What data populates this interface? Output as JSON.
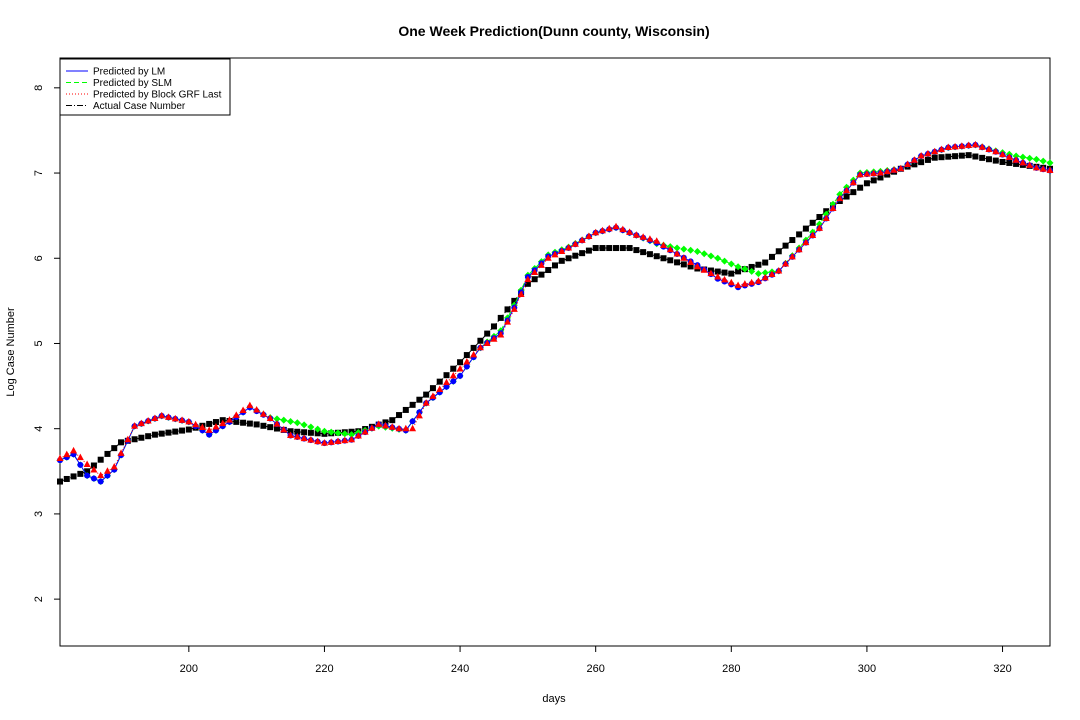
{
  "chart_data": {
    "type": "line",
    "title": "One Week Prediction(Dunn county, Wisconsin)",
    "xlabel": "days",
    "ylabel": "Log Case Number",
    "xlim": [
      181,
      327
    ],
    "ylim": [
      1.45,
      8.35
    ],
    "x_ticks": [
      200,
      220,
      240,
      260,
      280,
      300,
      320
    ],
    "y_ticks": [
      2,
      3,
      4,
      5,
      6,
      7,
      8
    ],
    "grid": false,
    "legend_position": "top-left",
    "colors": {
      "lm": "#0000ff",
      "slm": "#00ff00",
      "grf": "#ff0000",
      "actual": "#000000"
    },
    "legend": [
      {
        "key": "lm",
        "label": "Predicted by LM"
      },
      {
        "key": "slm",
        "label": "Predicted by SLM"
      },
      {
        "key": "grf",
        "label": "Predicted by Block GRF Last"
      },
      {
        "key": "actual",
        "label": "Actual Case Number"
      }
    ],
    "actual_knots": [
      [
        181,
        3.38
      ],
      [
        185,
        3.5
      ],
      [
        190,
        3.84
      ],
      [
        195,
        3.93
      ],
      [
        200,
        3.99
      ],
      [
        205,
        4.1
      ],
      [
        210,
        4.05
      ],
      [
        215,
        3.97
      ],
      [
        220,
        3.94
      ],
      [
        225,
        3.97
      ],
      [
        230,
        4.1
      ],
      [
        235,
        4.4
      ],
      [
        240,
        4.78
      ],
      [
        245,
        5.2
      ],
      [
        250,
        5.7
      ],
      [
        255,
        5.97
      ],
      [
        260,
        6.12
      ],
      [
        265,
        6.12
      ],
      [
        270,
        6.0
      ],
      [
        275,
        5.88
      ],
      [
        280,
        5.82
      ],
      [
        285,
        5.95
      ],
      [
        290,
        6.28
      ],
      [
        295,
        6.62
      ],
      [
        300,
        6.88
      ],
      [
        305,
        7.05
      ],
      [
        310,
        7.18
      ],
      [
        315,
        7.21
      ],
      [
        320,
        7.13
      ],
      [
        327,
        7.05
      ]
    ],
    "grf_knots": [
      [
        181,
        3.65
      ],
      [
        183,
        3.74
      ],
      [
        185,
        3.58
      ],
      [
        187,
        3.45
      ],
      [
        189,
        3.55
      ],
      [
        192,
        4.03
      ],
      [
        196,
        4.15
      ],
      [
        200,
        4.08
      ],
      [
        203,
        3.98
      ],
      [
        206,
        4.1
      ],
      [
        209,
        4.27
      ],
      [
        212,
        4.12
      ],
      [
        215,
        3.92
      ],
      [
        220,
        3.83
      ],
      [
        224,
        3.87
      ],
      [
        228,
        4.05
      ],
      [
        231,
        4.0
      ],
      [
        233,
        4.0
      ],
      [
        235,
        4.3
      ],
      [
        240,
        4.7
      ],
      [
        243,
        4.95
      ],
      [
        246,
        5.1
      ],
      [
        248,
        5.4
      ],
      [
        250,
        5.75
      ],
      [
        253,
        6.0
      ],
      [
        256,
        6.12
      ],
      [
        260,
        6.3
      ],
      [
        263,
        6.37
      ],
      [
        266,
        6.27
      ],
      [
        269,
        6.2
      ],
      [
        272,
        6.05
      ],
      [
        275,
        5.9
      ],
      [
        278,
        5.78
      ],
      [
        281,
        5.68
      ],
      [
        284,
        5.73
      ],
      [
        287,
        5.85
      ],
      [
        290,
        6.1
      ],
      [
        293,
        6.35
      ],
      [
        296,
        6.7
      ],
      [
        299,
        6.98
      ],
      [
        302,
        7.0
      ],
      [
        305,
        7.05
      ],
      [
        308,
        7.2
      ],
      [
        312,
        7.3
      ],
      [
        316,
        7.33
      ],
      [
        319,
        7.25
      ],
      [
        322,
        7.15
      ],
      [
        325,
        7.06
      ],
      [
        327,
        7.03
      ]
    ],
    "slm_knots": [
      [
        181,
        3.63
      ],
      [
        183,
        3.7
      ],
      [
        185,
        3.45
      ],
      [
        187,
        3.38
      ],
      [
        189,
        3.52
      ],
      [
        192,
        4.03
      ],
      [
        196,
        4.15
      ],
      [
        200,
        4.08
      ],
      [
        203,
        3.93
      ],
      [
        206,
        4.08
      ],
      [
        209,
        4.25
      ],
      [
        212,
        4.13
      ],
      [
        216,
        4.07
      ],
      [
        220,
        3.97
      ],
      [
        224,
        3.93
      ],
      [
        228,
        4.03
      ],
      [
        232,
        3.98
      ],
      [
        235,
        4.3
      ],
      [
        240,
        4.62
      ],
      [
        243,
        4.95
      ],
      [
        246,
        5.15
      ],
      [
        248,
        5.45
      ],
      [
        250,
        5.8
      ],
      [
        253,
        6.04
      ],
      [
        256,
        6.13
      ],
      [
        260,
        6.3
      ],
      [
        263,
        6.36
      ],
      [
        266,
        6.27
      ],
      [
        269,
        6.17
      ],
      [
        272,
        6.12
      ],
      [
        275,
        6.08
      ],
      [
        278,
        6.0
      ],
      [
        281,
        5.9
      ],
      [
        284,
        5.82
      ],
      [
        287,
        5.85
      ],
      [
        290,
        6.12
      ],
      [
        293,
        6.4
      ],
      [
        296,
        6.75
      ],
      [
        299,
        7.0
      ],
      [
        302,
        7.02
      ],
      [
        305,
        7.05
      ],
      [
        308,
        7.2
      ],
      [
        312,
        7.3
      ],
      [
        316,
        7.33
      ],
      [
        319,
        7.26
      ],
      [
        322,
        7.2
      ],
      [
        325,
        7.16
      ],
      [
        327,
        7.12
      ]
    ],
    "lm_knots": [
      [
        181,
        3.63
      ],
      [
        183,
        3.7
      ],
      [
        185,
        3.45
      ],
      [
        187,
        3.38
      ],
      [
        189,
        3.52
      ],
      [
        192,
        4.03
      ],
      [
        196,
        4.15
      ],
      [
        200,
        4.08
      ],
      [
        203,
        3.93
      ],
      [
        206,
        4.08
      ],
      [
        209,
        4.25
      ],
      [
        212,
        4.12
      ],
      [
        215,
        3.92
      ],
      [
        220,
        3.83
      ],
      [
        224,
        3.87
      ],
      [
        228,
        4.05
      ],
      [
        232,
        3.98
      ],
      [
        235,
        4.3
      ],
      [
        240,
        4.62
      ],
      [
        243,
        4.95
      ],
      [
        246,
        5.12
      ],
      [
        248,
        5.42
      ],
      [
        250,
        5.78
      ],
      [
        253,
        6.02
      ],
      [
        256,
        6.12
      ],
      [
        260,
        6.3
      ],
      [
        263,
        6.36
      ],
      [
        266,
        6.27
      ],
      [
        269,
        6.18
      ],
      [
        272,
        6.05
      ],
      [
        275,
        5.92
      ],
      [
        278,
        5.76
      ],
      [
        281,
        5.66
      ],
      [
        284,
        5.72
      ],
      [
        287,
        5.85
      ],
      [
        290,
        6.1
      ],
      [
        293,
        6.35
      ],
      [
        296,
        6.7
      ],
      [
        299,
        6.98
      ],
      [
        302,
        7.0
      ],
      [
        305,
        7.05
      ],
      [
        308,
        7.2
      ],
      [
        312,
        7.3
      ],
      [
        316,
        7.33
      ],
      [
        319,
        7.25
      ],
      [
        322,
        7.15
      ],
      [
        325,
        7.06
      ],
      [
        327,
        7.03
      ]
    ]
  }
}
